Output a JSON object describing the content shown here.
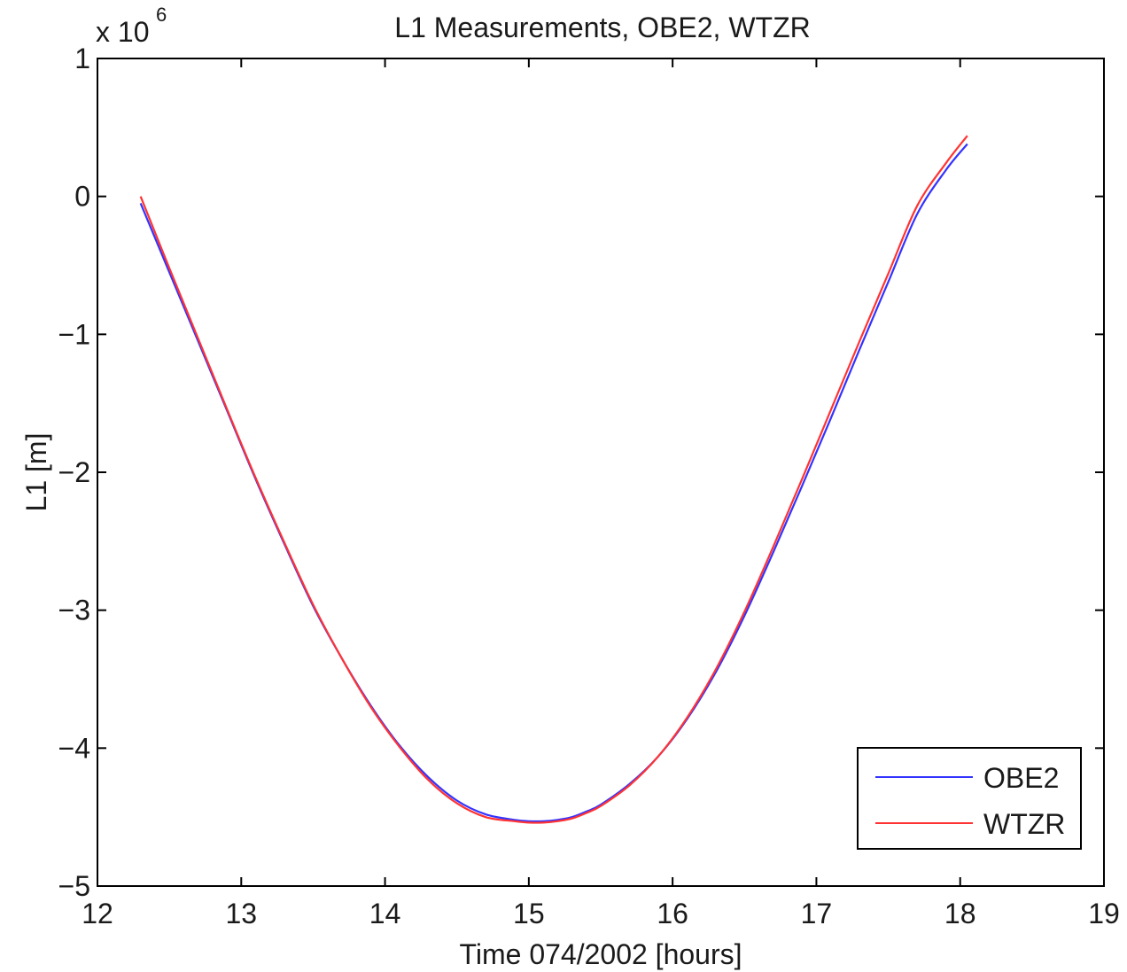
{
  "chart_data": {
    "type": "line",
    "title": "L1 Measurements, OBE2, WTZR",
    "xlabel": "Time 074/2002 [hours]",
    "ylabel": "L1 [m]",
    "y_exponent_base": "x 10",
    "y_exponent_power": "6",
    "xlim": [
      12,
      19
    ],
    "ylim": [
      -5,
      1
    ],
    "x_ticks": [
      12,
      13,
      14,
      15,
      16,
      17,
      18,
      19
    ],
    "y_ticks": [
      -5,
      -4,
      -3,
      -2,
      -1,
      0,
      1
    ],
    "x_tick_labels": [
      "12",
      "13",
      "14",
      "15",
      "16",
      "17",
      "18",
      "19"
    ],
    "y_tick_labels": [
      "−5",
      "−4",
      "−3",
      "−2",
      "−1",
      "0",
      "1"
    ],
    "grid": false,
    "legend_position": "bottom-right",
    "series": [
      {
        "name": "OBE2",
        "color": "#3333ff",
        "x": [
          12.3,
          12.5,
          12.7,
          12.9,
          13.1,
          13.3,
          13.5,
          13.7,
          13.9,
          14.1,
          14.3,
          14.5,
          14.7,
          14.9,
          15.0,
          15.1,
          15.2,
          15.3,
          15.4,
          15.5,
          15.7,
          15.9,
          16.1,
          16.3,
          16.5,
          16.7,
          16.9,
          17.1,
          17.3,
          17.5,
          17.7,
          17.9,
          18.05
        ],
        "y": [
          -0.05,
          -0.55,
          -1.05,
          -1.55,
          -2.05,
          -2.52,
          -2.97,
          -3.35,
          -3.69,
          -3.98,
          -4.21,
          -4.38,
          -4.48,
          -4.52,
          -4.53,
          -4.53,
          -4.52,
          -4.5,
          -4.46,
          -4.41,
          -4.26,
          -4.06,
          -3.79,
          -3.45,
          -3.04,
          -2.58,
          -2.1,
          -1.61,
          -1.11,
          -0.62,
          -0.13,
          0.19,
          0.38
        ]
      },
      {
        "name": "WTZR",
        "color": "#ff3333",
        "x": [
          12.3,
          12.5,
          12.7,
          12.9,
          13.1,
          13.3,
          13.5,
          13.7,
          13.9,
          14.1,
          14.3,
          14.5,
          14.7,
          14.9,
          15.0,
          15.1,
          15.2,
          15.3,
          15.4,
          15.5,
          15.7,
          15.9,
          16.1,
          16.3,
          16.5,
          16.7,
          16.9,
          17.1,
          17.3,
          17.5,
          17.7,
          17.9,
          18.05
        ],
        "y": [
          0.0,
          -0.52,
          -1.03,
          -1.54,
          -2.04,
          -2.51,
          -2.96,
          -3.35,
          -3.7,
          -3.99,
          -4.23,
          -4.4,
          -4.5,
          -4.53,
          -4.54,
          -4.54,
          -4.53,
          -4.51,
          -4.47,
          -4.42,
          -4.27,
          -4.06,
          -3.78,
          -3.43,
          -3.01,
          -2.54,
          -2.05,
          -1.55,
          -1.05,
          -0.56,
          -0.07,
          0.24,
          0.44
        ]
      }
    ]
  }
}
